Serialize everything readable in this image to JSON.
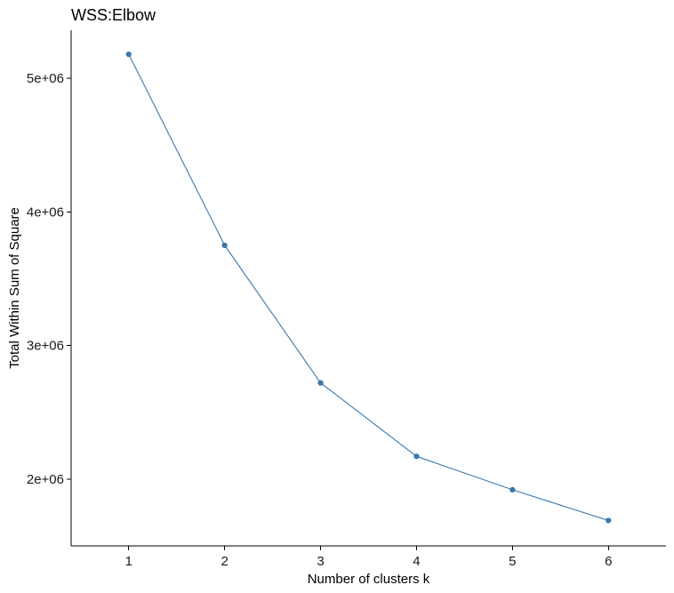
{
  "chart_data": {
    "type": "line",
    "title": "WSS:Elbow",
    "xlabel": "Number of clusters k",
    "ylabel": "Total Within Sum of Square",
    "x": [
      1,
      2,
      3,
      4,
      5,
      6
    ],
    "x_tick_labels": [
      "1",
      "2",
      "3",
      "4",
      "5",
      "6"
    ],
    "y_ticks": [
      2000000,
      3000000,
      4000000,
      5000000
    ],
    "y_tick_labels": [
      "2e+06",
      "3e+06",
      "4e+06",
      "5e+06"
    ],
    "series": [
      {
        "values": [
          5180000,
          3750000,
          2720000,
          2170000,
          1920000,
          1690000
        ]
      }
    ],
    "xlim": [
      0.4,
      6.6
    ],
    "ylim": [
      1500000,
      5360000
    ],
    "grid": false,
    "colors": {
      "series": "#3a78b0",
      "axis": "#000000"
    }
  }
}
